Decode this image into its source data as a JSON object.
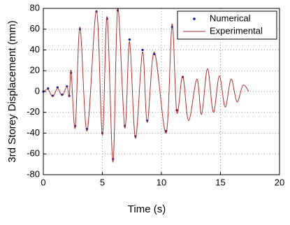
{
  "chart_data": {
    "type": "line",
    "xlabel": "Time (s)",
    "ylabel": "3rd Storey Displacement (mm)",
    "xlim": [
      0,
      20
    ],
    "xticks": [
      0,
      5,
      10,
      15,
      20
    ],
    "ylim": [
      -80,
      80
    ],
    "yticks": [
      -80,
      -60,
      -40,
      -20,
      0,
      20,
      40,
      60,
      80
    ],
    "grid": true,
    "legend": "upper right",
    "series": [
      {
        "name": "Numerical",
        "color": "#1010c0",
        "mode": "markers",
        "x": [
          0,
          0.4,
          0.8,
          1.2,
          1.6,
          2.0,
          2.2,
          2.35,
          2.7,
          3.1,
          3.7,
          4.5,
          5.0,
          5.4,
          5.9,
          6.3,
          6.9,
          7.3,
          7.8,
          8.4,
          8.8,
          9.4,
          10.4,
          10.9,
          11.3,
          11.8
        ],
        "values": [
          0,
          3,
          -4,
          4,
          -3,
          5,
          -4,
          18,
          -33,
          60,
          -36,
          77,
          -40,
          70,
          -65,
          78,
          -33,
          50,
          -43,
          40,
          -28,
          36,
          -38,
          62,
          -18,
          14
        ]
      },
      {
        "name": "Experimental",
        "color": "#b03030",
        "mode": "lines",
        "x": [
          0,
          0.4,
          0.8,
          1.2,
          1.6,
          2.0,
          2.2,
          2.35,
          2.7,
          3.1,
          3.7,
          4.5,
          5.0,
          5.4,
          5.9,
          6.3,
          6.9,
          7.3,
          7.8,
          8.4,
          8.8,
          9.4,
          10.4,
          10.9,
          11.3,
          11.8,
          12.3,
          13.0,
          13.4,
          13.9,
          14.4,
          14.9,
          15.4,
          15.9,
          16.4,
          16.9,
          17.4
        ],
        "values": [
          0,
          2,
          -5,
          3,
          -4,
          5,
          -5,
          20,
          -35,
          62,
          -38,
          78,
          -42,
          72,
          -68,
          80,
          -35,
          48,
          -45,
          38,
          -30,
          38,
          -40,
          65,
          -20,
          15,
          -28,
          12,
          -22,
          22,
          -20,
          15,
          -15,
          12,
          -10,
          6,
          0
        ]
      }
    ]
  }
}
